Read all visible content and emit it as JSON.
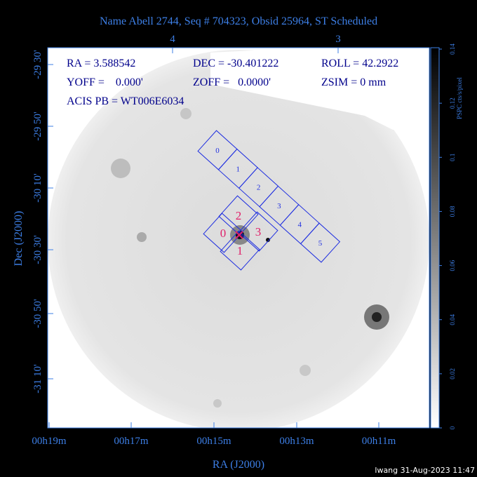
{
  "title": "Name Abell 2744, Seq # 704323, Obsid 25964, ST Scheduled",
  "top_ticks": [
    "4",
    "3"
  ],
  "x_ticks": [
    "00h19m",
    "00h17m",
    "00h15m",
    "00h13m",
    "00h11m"
  ],
  "y_ticks": [
    "-29 30'",
    "-29 50'",
    "-30 10'",
    "-30 30'",
    "-30 50'",
    "-31 10'"
  ],
  "x_label": "RA (J2000)",
  "y_label": "Dec (J2000)",
  "info": [
    "RA = 3.588542",
    "DEC = -30.401222",
    "ROLL = 42.2922",
    "YOFF =    0.000'",
    "ZOFF =   0.0000'",
    "ZSIM = 0 mm",
    "ACIS PB = WT006E6034"
  ],
  "acis_s_chips": [
    "0",
    "1",
    "2",
    "3",
    "4",
    "5"
  ],
  "acis_i_chips": [
    "0",
    "1",
    "2",
    "3"
  ],
  "colorbar": {
    "label": "PSPC cts/s/pixel",
    "range": [
      0,
      0.14
    ],
    "ticks": [
      0,
      0.02,
      0.04,
      0.06,
      0.08,
      0.1,
      0.12,
      0.14
    ]
  },
  "footer": "lwang 31-Aug-2023 11:47"
}
